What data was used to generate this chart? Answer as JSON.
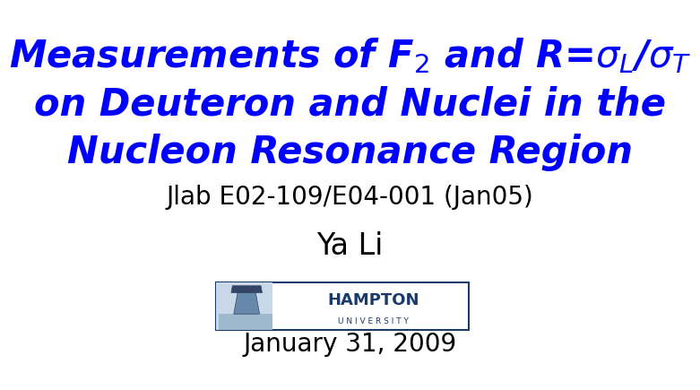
{
  "background_color": "#ffffff",
  "title_line1": "Measurements of F$_2$ and R=$\\sigma_L$/$\\sigma_T$",
  "title_line2": "on Deuteron and Nuclei in the",
  "title_line3": "Nucleon Resonance Region",
  "subtitle": "Jlab E02-109/E04-001 (Jan05)",
  "author": "Ya Li",
  "date": "January 31, 2009",
  "title_color": "#0000ff",
  "subtitle_color": "#000000",
  "author_color": "#000000",
  "date_color": "#000000",
  "title_fontsize": 30,
  "subtitle_fontsize": 20,
  "author_fontsize": 24,
  "date_fontsize": 20,
  "hampton_color": "#1a3a6b",
  "hampton_bg": "#c8d8e8"
}
